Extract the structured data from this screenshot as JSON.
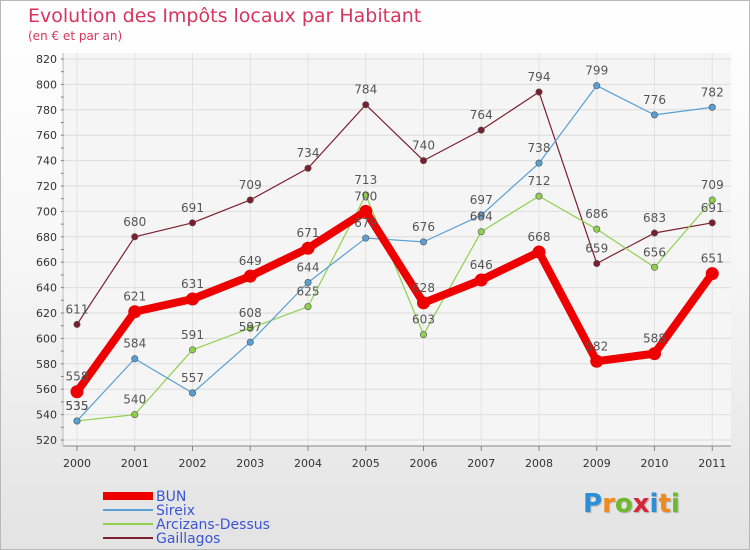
{
  "title": "Evolution des Impôts locaux par Habitant",
  "subtitle": "(en € et par an)",
  "logo": {
    "letters": [
      "P",
      "r",
      "o",
      "x",
      "i",
      "t",
      "i"
    ],
    "colors": [
      "#2a8fd6",
      "#f18a1c",
      "#6fba2c",
      "#d8263a",
      "#2a8fd6",
      "#f18a1c",
      "#6fba2c"
    ]
  },
  "chart_data": {
    "type": "line",
    "x": [
      "2000",
      "2001",
      "2002",
      "2003",
      "2004",
      "2005",
      "2006",
      "2007",
      "2008",
      "2009",
      "2010",
      "2011"
    ],
    "ylim": [
      520,
      820
    ],
    "yticks": [
      "520",
      "540",
      "560",
      "580",
      "600",
      "620",
      "640",
      "660",
      "680",
      "700",
      "720",
      "740",
      "760",
      "780",
      "800",
      "820"
    ],
    "grid": true,
    "legend_position": "bottom-left",
    "series": [
      {
        "name": "Gaillagos",
        "color": "#7b1f2e",
        "values": [
          611,
          680,
          691,
          709,
          734,
          784,
          740,
          764,
          794,
          659,
          683,
          691
        ]
      },
      {
        "name": "Arcizans-Dessus",
        "color": "#8fd14f",
        "values": [
          535,
          540,
          591,
          608,
          625,
          713,
          603,
          684,
          712,
          686,
          656,
          709
        ]
      },
      {
        "name": "Sireix",
        "color": "#5a9fd4",
        "values": [
          535,
          584,
          557,
          597,
          644,
          679,
          676,
          697,
          738,
          799,
          776,
          782
        ]
      },
      {
        "name": "BUN",
        "color": "#ee0000",
        "values": [
          558,
          621,
          631,
          649,
          671,
          700,
          628,
          646,
          668,
          582,
          588,
          651
        ]
      }
    ],
    "legend": [
      "BUN",
      "Sireix",
      "Arcizans-Dessus",
      "Gaillagos"
    ]
  }
}
